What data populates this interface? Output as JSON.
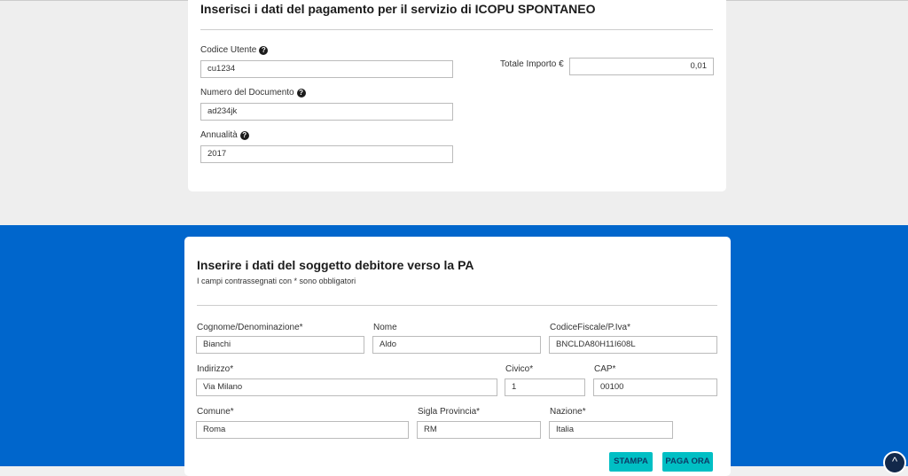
{
  "payment": {
    "title": "Inserisci i dati del pagamento per il servizio di ICOPU SPONTANEO",
    "fields": [
      {
        "label": "Codice Utente",
        "value": "cu1234"
      },
      {
        "label": "Numero del Documento",
        "value": "ad234jk"
      },
      {
        "label": "Annualità",
        "value": "2017"
      }
    ],
    "total_label": "Totale Importo €",
    "total_value": "0,01"
  },
  "debtor": {
    "title": "Inserire i dati del soggetto debitore verso la PA",
    "subtitle": "I campi contrassegnati con * sono obbligatori",
    "fields": [
      {
        "label": "Cognome/Denominazione*",
        "value": "Bianchi"
      },
      {
        "label": "Nome",
        "value": "Aldo"
      },
      {
        "label": "CodiceFiscale/P.Iva*",
        "value": "BNCLDA80H11I608L"
      },
      {
        "label": "Indirizzo*",
        "value": "Via Milano"
      },
      {
        "label": "Civico*",
        "value": "1"
      },
      {
        "label": "CAP*",
        "value": "00100"
      },
      {
        "label": "Comune*",
        "value": "Roma"
      },
      {
        "label": "Sigla Provincia*",
        "value": "RM"
      },
      {
        "label": "Nazione*",
        "value": "Italia"
      }
    ],
    "print_label": "STAMPA",
    "pay_label": "PAGA ORA"
  },
  "colors": {
    "blue": "#0066cc",
    "button": "#00bfc4"
  }
}
